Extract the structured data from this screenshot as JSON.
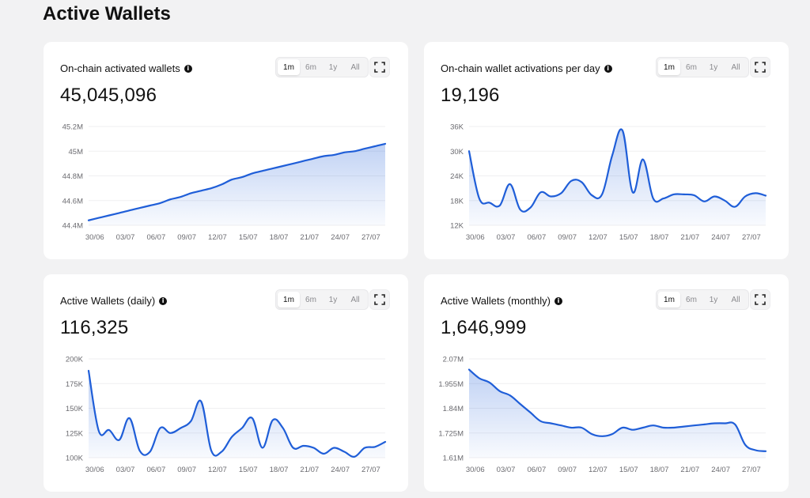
{
  "page": {
    "title": "Active Wallets"
  },
  "ranges": [
    "1m",
    "6m",
    "1y",
    "All"
  ],
  "active_range": "1m",
  "accent": "#1f5ed8",
  "cards": [
    {
      "title": "On-chain activated wallets",
      "value": "45,045,096"
    },
    {
      "title": "On-chain wallet activations per day",
      "value": "19,196"
    },
    {
      "title": "Active Wallets (daily)",
      "value": "116,325"
    },
    {
      "title": "Active Wallets (monthly)",
      "value": "1,646,999"
    }
  ],
  "chart_data": [
    {
      "type": "area",
      "title": "On-chain activated wallets",
      "x_ticks": [
        "30/06",
        "03/07",
        "06/07",
        "09/07",
        "12/07",
        "15/07",
        "18/07",
        "21/07",
        "24/07",
        "27/07"
      ],
      "y_ticks": [
        "45.2M",
        "45M",
        "44.8M",
        "44.6M",
        "44.4M"
      ],
      "y_tick_values": [
        45.2,
        45.0,
        44.8,
        44.6,
        44.4
      ],
      "ylim": [
        44.4,
        45.2
      ],
      "x": [
        0,
        1,
        2,
        3,
        4,
        5,
        6,
        7,
        8,
        9,
        10,
        11,
        12,
        13,
        14,
        15,
        16,
        17,
        18,
        19,
        20,
        21,
        22,
        23,
        24,
        25,
        26,
        27,
        28,
        29
      ],
      "values": [
        44.44,
        44.46,
        44.48,
        44.5,
        44.52,
        44.54,
        44.56,
        44.58,
        44.61,
        44.63,
        44.66,
        44.68,
        44.7,
        44.73,
        44.77,
        44.79,
        44.82,
        44.84,
        44.86,
        44.88,
        44.9,
        44.92,
        44.94,
        44.96,
        44.97,
        44.99,
        45.0,
        45.02,
        45.04,
        45.06
      ]
    },
    {
      "type": "area",
      "title": "On-chain wallet activations per day",
      "x_ticks": [
        "30/06",
        "03/07",
        "06/07",
        "09/07",
        "12/07",
        "15/07",
        "18/07",
        "21/07",
        "24/07",
        "27/07"
      ],
      "y_ticks": [
        "36K",
        "30K",
        "24K",
        "18K",
        "12K"
      ],
      "y_tick_values": [
        36,
        30,
        24,
        18,
        12
      ],
      "ylim": [
        12,
        36
      ],
      "x": [
        0,
        1,
        2,
        3,
        4,
        5,
        6,
        7,
        8,
        9,
        10,
        11,
        12,
        13,
        14,
        15,
        16,
        17,
        18,
        19,
        20,
        21,
        22,
        23,
        24,
        25,
        26,
        27,
        28,
        29
      ],
      "values": [
        30.0,
        18.5,
        17.5,
        16.8,
        22.0,
        15.8,
        16.3,
        20.0,
        19.0,
        19.8,
        22.8,
        22.5,
        19.3,
        19.5,
        29.0,
        35.0,
        20.0,
        28.0,
        18.5,
        18.5,
        19.5,
        19.5,
        19.3,
        17.8,
        19.0,
        18.0,
        16.5,
        19.0,
        19.8,
        19.2
      ]
    },
    {
      "type": "area",
      "title": "Active Wallets (daily)",
      "x_ticks": [
        "30/06",
        "03/07",
        "06/07",
        "09/07",
        "12/07",
        "15/07",
        "18/07",
        "21/07",
        "24/07",
        "27/07"
      ],
      "y_ticks": [
        "200K",
        "175K",
        "150K",
        "125K",
        "100K"
      ],
      "y_tick_values": [
        200,
        175,
        150,
        125,
        100
      ],
      "ylim": [
        100,
        200
      ],
      "x": [
        0,
        1,
        2,
        3,
        4,
        5,
        6,
        7,
        8,
        9,
        10,
        11,
        12,
        13,
        14,
        15,
        16,
        17,
        18,
        19,
        20,
        21,
        22,
        23,
        24,
        25,
        26,
        27,
        28,
        29
      ],
      "values": [
        188,
        127,
        128,
        118,
        140,
        107,
        106,
        130,
        125,
        130,
        137,
        157,
        107,
        106,
        121,
        130,
        140,
        110,
        138,
        130,
        110,
        112,
        110,
        104,
        110,
        106,
        101,
        110,
        111,
        116
      ]
    },
    {
      "type": "area",
      "title": "Active Wallets (monthly)",
      "x_ticks": [
        "30/06",
        "03/07",
        "06/07",
        "09/07",
        "12/07",
        "15/07",
        "18/07",
        "21/07",
        "24/07",
        "27/07"
      ],
      "y_ticks": [
        "2.07M",
        "1.955M",
        "1.84M",
        "1.725M",
        "1.61M"
      ],
      "y_tick_values": [
        2.07,
        1.955,
        1.84,
        1.725,
        1.61
      ],
      "ylim": [
        1.61,
        2.07
      ],
      "x": [
        0,
        1,
        2,
        3,
        4,
        5,
        6,
        7,
        8,
        9,
        10,
        11,
        12,
        13,
        14,
        15,
        16,
        17,
        18,
        19,
        20,
        21,
        22,
        23,
        24,
        25,
        26,
        27,
        28,
        29
      ],
      "values": [
        2.02,
        1.98,
        1.96,
        1.92,
        1.9,
        1.86,
        1.82,
        1.78,
        1.77,
        1.76,
        1.75,
        1.75,
        1.72,
        1.71,
        1.72,
        1.75,
        1.74,
        1.75,
        1.76,
        1.75,
        1.75,
        1.755,
        1.76,
        1.765,
        1.77,
        1.77,
        1.765,
        1.67,
        1.645,
        1.64
      ]
    }
  ]
}
